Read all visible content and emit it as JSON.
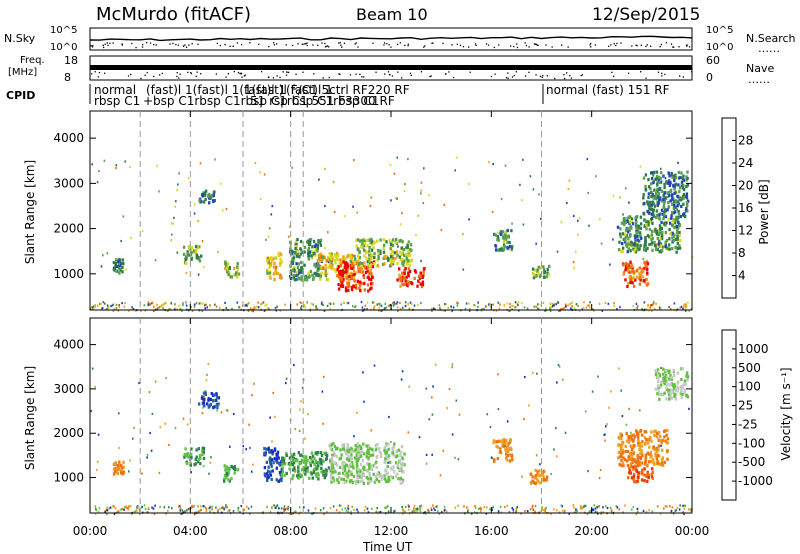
{
  "header": {
    "station": "McMurdo (fitACF)",
    "beam": "Beam 10",
    "date": "12/Sep/2015"
  },
  "panels": {
    "noise": {
      "left_label": "N.Sky",
      "right_label": "N.Search",
      "left_ticks": [
        "10^5",
        "10^0"
      ],
      "right_ticks": [
        "10^5",
        "10^0"
      ]
    },
    "freq": {
      "left_label_1": "Freq.",
      "left_label_2": "[MHz]",
      "right_label": "Nave",
      "left_ticks": [
        "18",
        "8"
      ],
      "right_ticks": [
        "60",
        "0"
      ]
    },
    "cpid": {
      "label": "CPID",
      "top_overlap": "(fast)l 1(fast)l 1(fast)l 1(fast)l 1",
      "bot_overlap": "+bsp C1rbsp C1rbsp C1rbsp C1rbsp C1",
      "late_top": "1(fast)l F/C1 5ctrl RF220 RF",
      "late_bot": "51 rsp C1 551 F3300 RF",
      "segments": [
        {
          "line1": "normal",
          "line2": "rbsp  C1"
        },
        {
          "line1": "normal (fast) 151 RF",
          "line2": ""
        }
      ]
    }
  },
  "x_axis": {
    "ticks": [
      "00:00",
      "04:00",
      "08:00",
      "12:00",
      "16:00",
      "20:00",
      "00:00"
    ],
    "label": "Time UT"
  },
  "power_panel": {
    "y_label": "Slant Range [km]",
    "y_ticks": [
      "1000",
      "2000",
      "3000",
      "4000"
    ],
    "cbar_label": "Power [dB]",
    "cbar_ticks": [
      "4",
      "8",
      "12",
      "16",
      "20",
      "24",
      "28"
    ],
    "cbar_colors": [
      "#0000ee",
      "#2244bb",
      "#2e7a4a",
      "#5aa050",
      "#d8d820",
      "#f0a020",
      "#f07010",
      "#ee0000"
    ]
  },
  "velocity_panel": {
    "y_label": "Slant Range [km]",
    "y_ticks": [
      "1000",
      "2000",
      "3000",
      "4000"
    ],
    "cbar_label": "Velocity [m s⁻¹]",
    "cbar_ticks": [
      "1000",
      "500",
      "100",
      "25",
      "-25",
      "-100",
      "-500",
      "-1000"
    ],
    "cbar_colors": [
      "#1530c0",
      "#2a60a0",
      "#2e8050",
      "#60c040",
      "#c8c8c8",
      "#f0a020",
      "#f07010",
      "#f03000",
      "#ee0000"
    ]
  },
  "chart_data": {
    "type": "heatmap",
    "title": "McMurdo (fitACF)   Beam 10   12/Sep/2015",
    "xlabel": "Time UT",
    "ylabel": "Slant Range [km]",
    "xlim_hours": [
      0,
      24
    ],
    "ylim_km": [
      200,
      4600
    ],
    "mode_change_lines_hours": [
      2.0,
      4.0,
      6.1,
      8.0,
      8.5,
      18.0
    ],
    "panels": [
      "Power [dB]",
      "Velocity [m s-1]"
    ],
    "power_regions": [
      {
        "t0": 0.9,
        "t1": 1.3,
        "r0": 1050,
        "r1": 1350,
        "level": 10
      },
      {
        "t0": 3.7,
        "t1": 4.4,
        "r0": 1250,
        "r1": 1650,
        "level": 14
      },
      {
        "t0": 4.3,
        "t1": 5.0,
        "r0": 2600,
        "r1": 2900,
        "level": 10
      },
      {
        "t0": 5.3,
        "t1": 5.9,
        "r0": 950,
        "r1": 1300,
        "level": 16
      },
      {
        "t0": 7.0,
        "t1": 7.6,
        "r0": 900,
        "r1": 1500,
        "level": 20
      },
      {
        "t0": 7.9,
        "t1": 9.2,
        "r0": 900,
        "r1": 1800,
        "level": 12
      },
      {
        "t0": 9.0,
        "t1": 10.5,
        "r0": 900,
        "r1": 1500,
        "level": 20
      },
      {
        "t0": 9.8,
        "t1": 11.3,
        "r0": 650,
        "r1": 1300,
        "level": 28
      },
      {
        "t0": 10.5,
        "t1": 12.8,
        "r0": 1200,
        "r1": 1800,
        "level": 16
      },
      {
        "t0": 12.2,
        "t1": 13.3,
        "r0": 750,
        "r1": 1150,
        "level": 28
      },
      {
        "t0": 16.0,
        "t1": 16.8,
        "r0": 1550,
        "r1": 2000,
        "level": 12
      },
      {
        "t0": 17.6,
        "t1": 18.3,
        "r0": 950,
        "r1": 1250,
        "level": 14
      },
      {
        "t0": 21.0,
        "t1": 23.5,
        "r0": 1500,
        "r1": 2300,
        "level": 12
      },
      {
        "t0": 21.2,
        "t1": 22.2,
        "r0": 750,
        "r1": 1300,
        "level": 26
      },
      {
        "t0": 22.0,
        "t1": 23.8,
        "r0": 2300,
        "r1": 3300,
        "level": 10
      }
    ],
    "velocity_regions": [
      {
        "t0": 0.9,
        "t1": 1.3,
        "r0": 1100,
        "r1": 1400,
        "level": -100
      },
      {
        "t0": 3.7,
        "t1": 4.5,
        "r0": 1300,
        "r1": 1700,
        "level": 100
      },
      {
        "t0": 4.3,
        "t1": 5.1,
        "r0": 2600,
        "r1": 2950,
        "level": 1000
      },
      {
        "t0": 5.3,
        "t1": 5.9,
        "r0": 950,
        "r1": 1300,
        "level": 100
      },
      {
        "t0": 6.9,
        "t1": 7.6,
        "r0": 950,
        "r1": 1700,
        "level": 1000
      },
      {
        "t0": 7.6,
        "t1": 9.5,
        "r0": 1000,
        "r1": 1600,
        "level": 100
      },
      {
        "t0": 9.5,
        "t1": 12.5,
        "r0": 900,
        "r1": 1800,
        "level": 25
      },
      {
        "t0": 16.0,
        "t1": 16.8,
        "r0": 1400,
        "r1": 1900,
        "level": -100
      },
      {
        "t0": 17.5,
        "t1": 18.2,
        "r0": 900,
        "r1": 1200,
        "level": -100
      },
      {
        "t0": 21.0,
        "t1": 23.0,
        "r0": 1300,
        "r1": 2100,
        "level": -100
      },
      {
        "t0": 21.4,
        "t1": 22.4,
        "r0": 900,
        "r1": 1300,
        "level": -500
      },
      {
        "t0": 22.5,
        "t1": 23.8,
        "r0": 2800,
        "r1": 3500,
        "level": 25
      }
    ]
  }
}
